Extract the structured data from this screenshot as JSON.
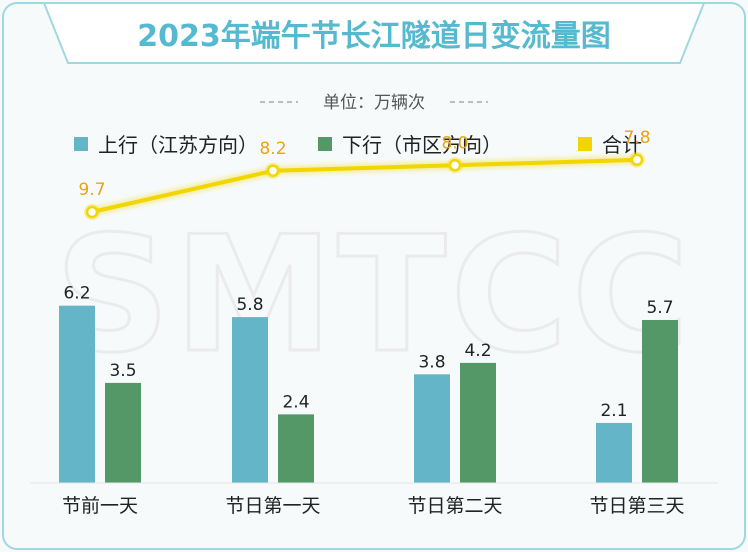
{
  "title": "2023年端午节长江隧道日变流量图",
  "unit": "单位：万辆次",
  "watermark": "SMTCC",
  "colors": {
    "frame": "#9fd8e3",
    "title": "#55b9cf",
    "up": "#64b5c8",
    "down": "#559867",
    "total": "#f2d600",
    "total_label": "#e8a414",
    "text": "#222222",
    "unit_text": "#555555",
    "watermark": "#eaeaea"
  },
  "chart_data": {
    "type": "bar",
    "title": "2023年端午节长江隧道日变流量图",
    "ylabel": "单位：万辆次",
    "categories": [
      "节前一天",
      "节日第一天",
      "节日第二天",
      "节日第三天"
    ],
    "series": [
      {
        "name": "上行（江苏方向）",
        "type": "bar",
        "color": "#64b5c8",
        "values": [
          6.2,
          5.8,
          3.8,
          2.1
        ]
      },
      {
        "name": "下行（市区方向）",
        "type": "bar",
        "color": "#559867",
        "values": [
          3.5,
          2.4,
          4.2,
          5.7
        ]
      },
      {
        "name": "合计",
        "type": "line",
        "color": "#f2d600",
        "values": [
          9.7,
          8.2,
          8.0,
          7.8
        ]
      }
    ],
    "ylim": [
      0,
      10
    ]
  }
}
